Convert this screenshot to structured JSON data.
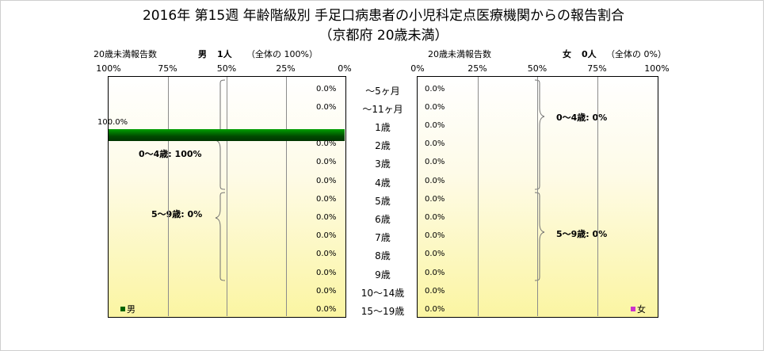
{
  "title_line1": "2016年 第15週 年齢階級別 手足口病患者の小児科定点医療機関からの報告割合",
  "title_line2": "（京都府 20歳未満）",
  "left_header": {
    "label": "20歳未満報告数",
    "sex": "男",
    "count": "1人",
    "share": "（全体の 100%）"
  },
  "right_header": {
    "label": "20歳未満報告数",
    "sex": "女",
    "count": "0人",
    "share": "（全体の 0%）"
  },
  "colors": {
    "male": "#006400",
    "female": "#cc33cc",
    "plot_bottom": "#fbf5a2"
  },
  "chart_data": [
    {
      "type": "bar",
      "orientation": "horizontal",
      "xaxis_reversed": true,
      "series": [
        {
          "name": "男",
          "values": [
            0.0,
            0.0,
            100.0,
            0.0,
            0.0,
            0.0,
            0.0,
            0.0,
            0.0,
            0.0,
            0.0,
            0.0,
            0.0
          ]
        }
      ],
      "categories": [
        "〜5ヶ月",
        "〜11ヶ月",
        "1歳",
        "2歳",
        "3歳",
        "4歳",
        "5歳",
        "6歳",
        "7歳",
        "8歳",
        "9歳",
        "10〜14歳",
        "15〜19歳"
      ],
      "data_labels": [
        "0.0%",
        "0.0%",
        "100.0%",
        "0.0%",
        "0.0%",
        "0.0%",
        "0.0%",
        "0.0%",
        "0.0%",
        "0.0%",
        "0.0%",
        "0.0%",
        "0.0%"
      ],
      "ticks": [
        "100%",
        "75%",
        "50%",
        "25%",
        "0%"
      ],
      "xlim": [
        0,
        100
      ],
      "annotations": [
        "0〜4歳: 100%",
        "5〜9歳: 0%"
      ],
      "legend": "bottom-left",
      "grid": true
    },
    {
      "type": "bar",
      "orientation": "horizontal",
      "series": [
        {
          "name": "女",
          "values": [
            0.0,
            0.0,
            0.0,
            0.0,
            0.0,
            0.0,
            0.0,
            0.0,
            0.0,
            0.0,
            0.0,
            0.0,
            0.0
          ]
        }
      ],
      "categories": [
        "〜5ヶ月",
        "〜11ヶ月",
        "1歳",
        "2歳",
        "3歳",
        "4歳",
        "5歳",
        "6歳",
        "7歳",
        "8歳",
        "9歳",
        "10〜14歳",
        "15〜19歳"
      ],
      "data_labels": [
        "0.0%",
        "0.0%",
        "0.0%",
        "0.0%",
        "0.0%",
        "0.0%",
        "0.0%",
        "0.0%",
        "0.0%",
        "0.0%",
        "0.0%",
        "0.0%",
        "0.0%"
      ],
      "ticks": [
        "0%",
        "25%",
        "50%",
        "75%",
        "100%"
      ],
      "xlim": [
        0,
        100
      ],
      "annotations": [
        "0〜4歳: 0%",
        "5〜9歳: 0%"
      ],
      "legend": "bottom-right",
      "grid": true
    }
  ]
}
